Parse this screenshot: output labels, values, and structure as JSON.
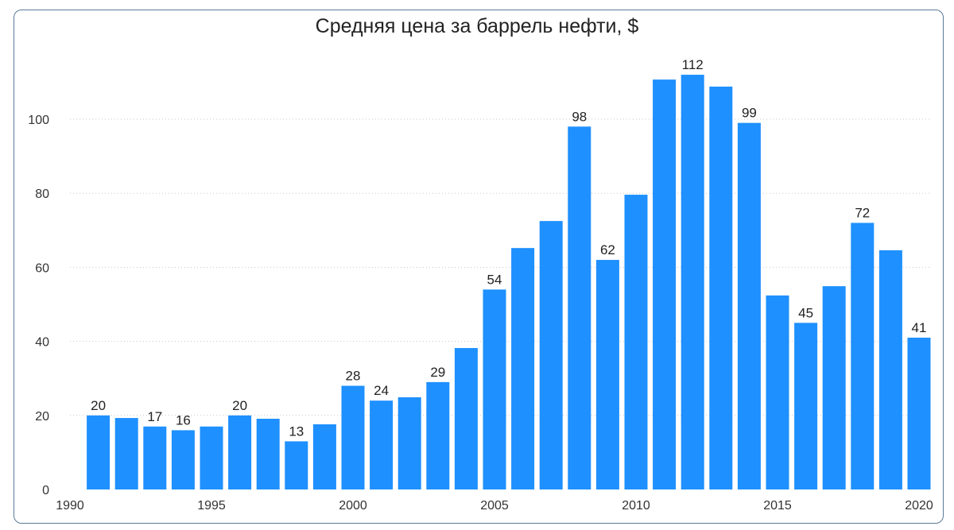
{
  "chart_data": {
    "type": "bar",
    "title": "Средняя цена за баррель нефти, $",
    "xlabel": "",
    "ylabel": "",
    "x": [
      1991,
      1992,
      1993,
      1994,
      1995,
      1996,
      1997,
      1998,
      1999,
      2000,
      2001,
      2002,
      2003,
      2004,
      2005,
      2006,
      2007,
      2008,
      2009,
      2010,
      2011,
      2012,
      2013,
      2014,
      2015,
      2016,
      2017,
      2018,
      2019,
      2020
    ],
    "values": [
      20,
      19.3,
      17,
      16,
      17,
      20,
      19.1,
      13,
      17.6,
      28,
      24,
      24.9,
      29,
      38.2,
      54,
      65.2,
      72.5,
      98,
      62,
      79.6,
      110.7,
      112,
      108.8,
      99,
      52.4,
      45,
      54.9,
      72,
      64.6,
      41
    ],
    "data_labels": {
      "1991": "20",
      "1993": "17",
      "1994": "16",
      "1996": "20",
      "1998": "13",
      "2000": "28",
      "2001": "24",
      "2003": "29",
      "2005": "54",
      "2008": "98",
      "2009": "62",
      "2012": "112",
      "2014": "99",
      "2016": "45",
      "2018": "72",
      "2020": "41"
    },
    "xlim": [
      1990,
      2020
    ],
    "ylim": [
      0,
      115
    ],
    "x_ticks": [
      "1990",
      "1995",
      "2000",
      "2005",
      "2010",
      "2015",
      "2020"
    ],
    "y_ticks": [
      "0",
      "20",
      "40",
      "60",
      "80",
      "100"
    ],
    "grid": "horizontal dotted",
    "bar_color": "#1e90ff",
    "legend": "none"
  }
}
